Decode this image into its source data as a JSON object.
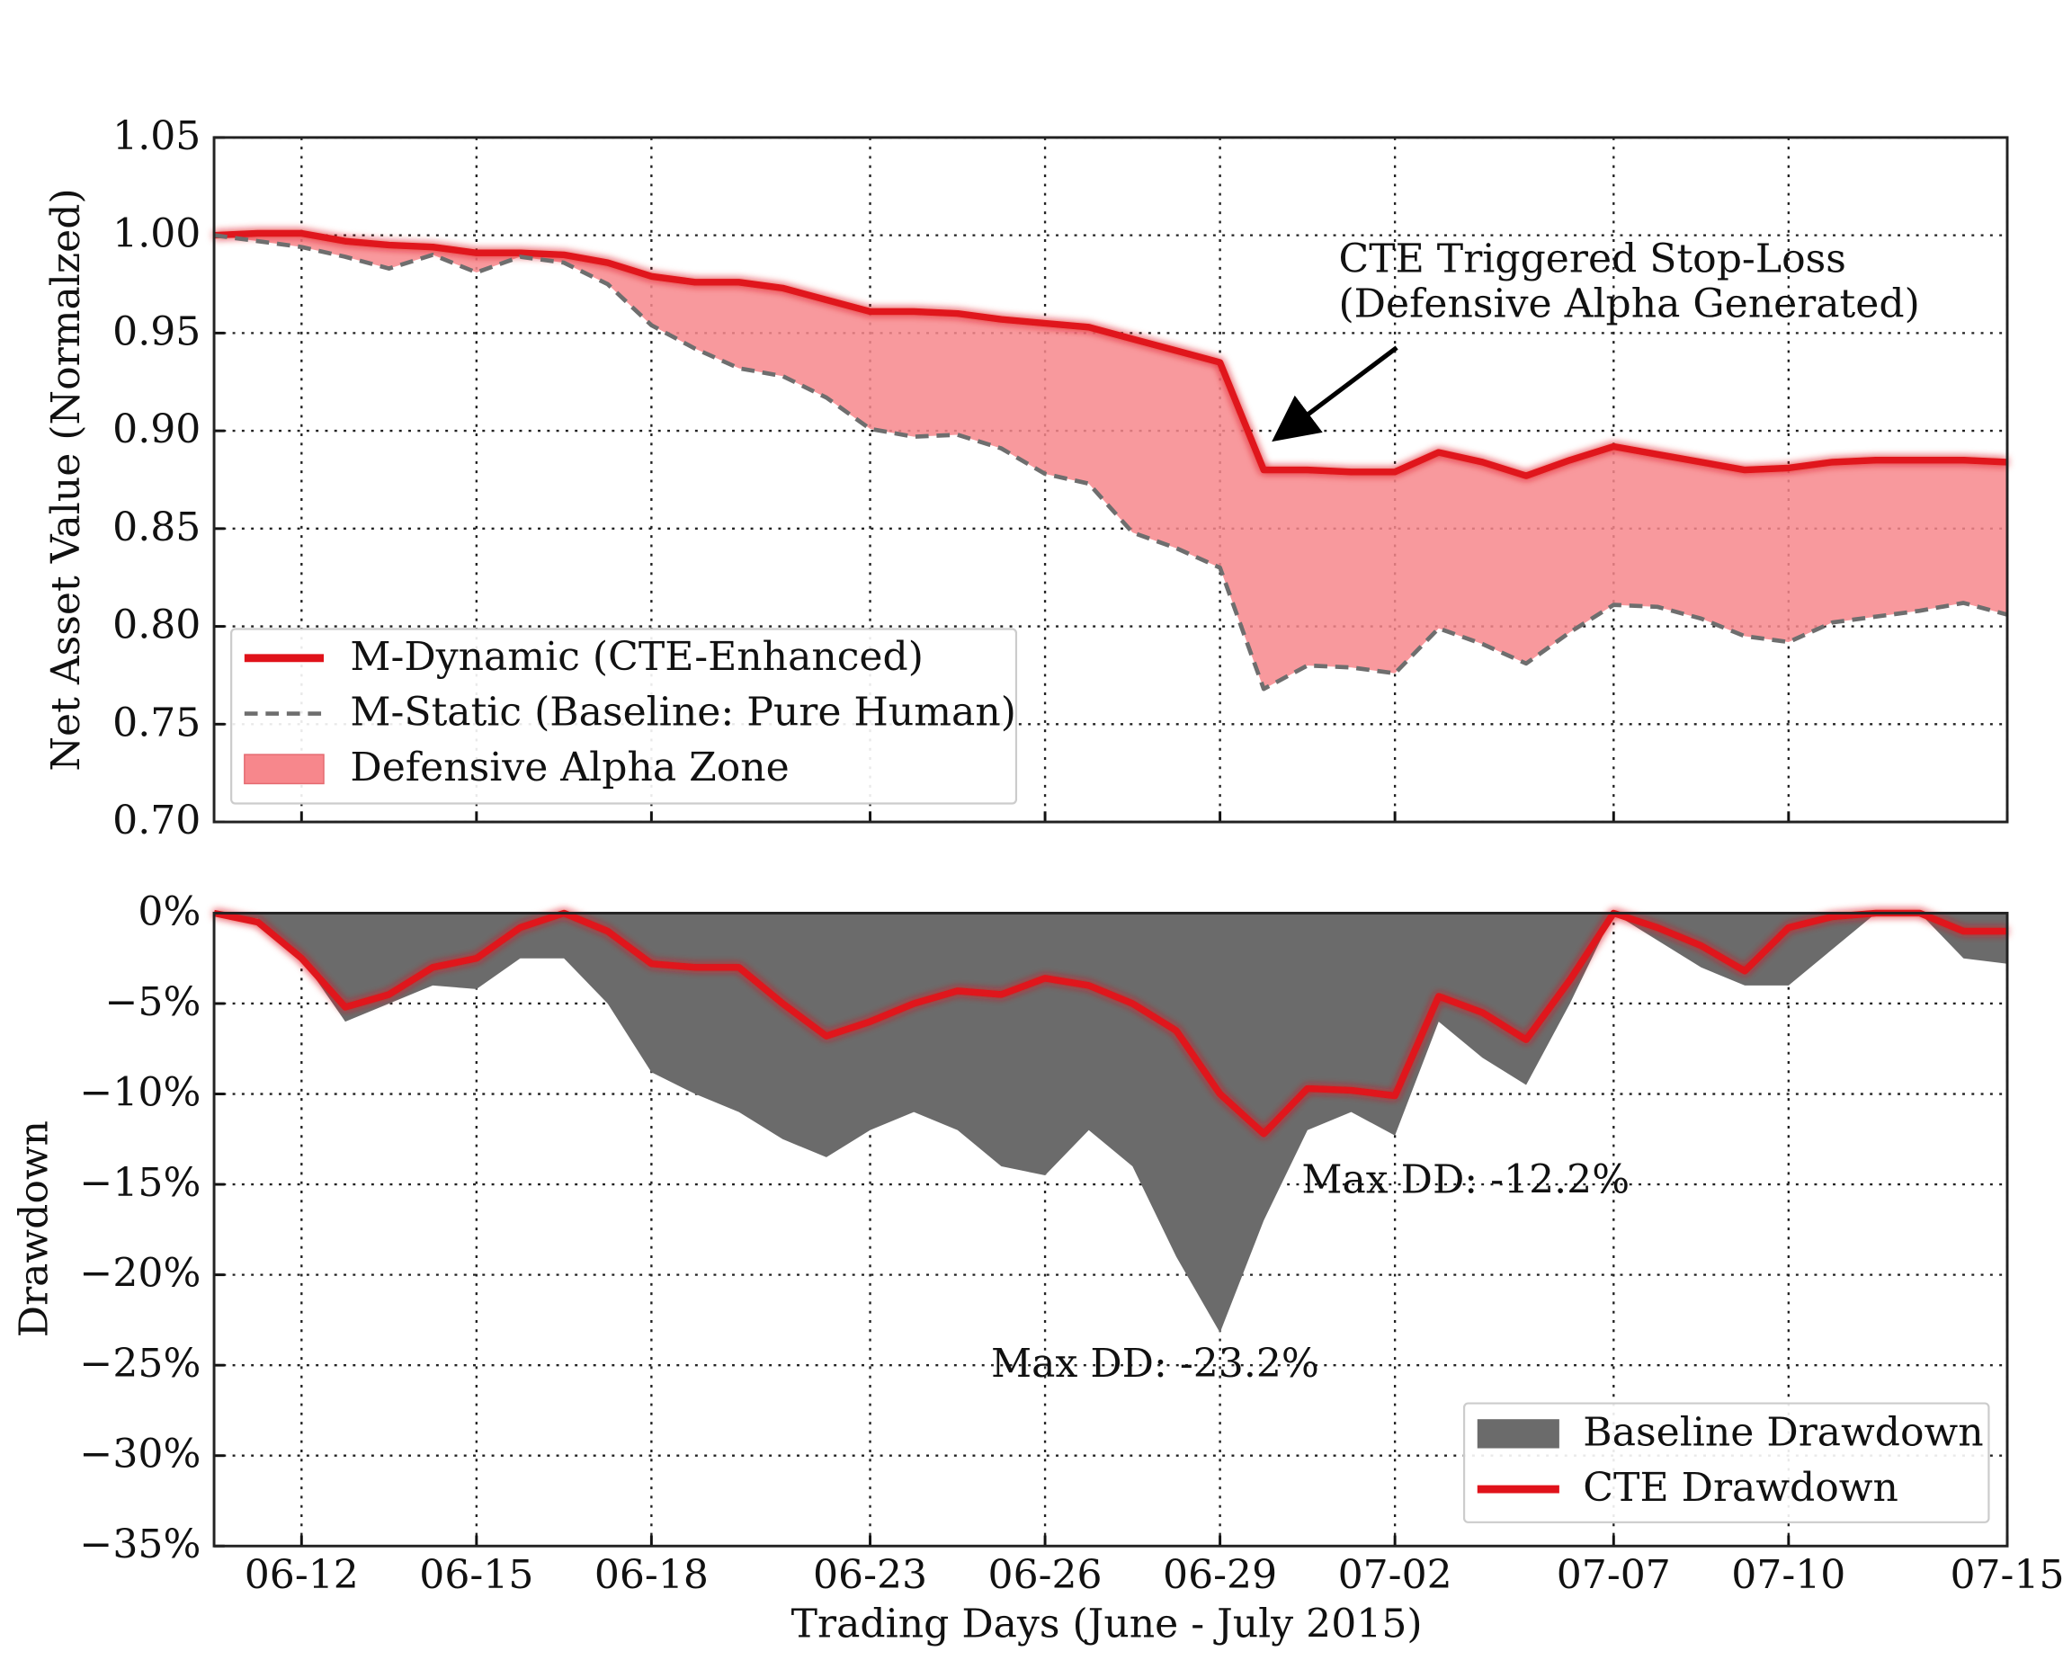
{
  "chart_data": [
    {
      "type": "line",
      "ylabel": "Net Asset Value (Normalzed)",
      "x": [
        0,
        1,
        2,
        3,
        4,
        5,
        6,
        7,
        8,
        9,
        10,
        11,
        12,
        13,
        14,
        15,
        16,
        17,
        18,
        19,
        20,
        21,
        22,
        23,
        24,
        25,
        26,
        27,
        28,
        29,
        30,
        31,
        32,
        33,
        34,
        35,
        36,
        37,
        38,
        39,
        40,
        41
      ],
      "xlim": [
        0,
        41
      ],
      "xticks": [
        2,
        6,
        10,
        15,
        19,
        23,
        27,
        32,
        36,
        41
      ],
      "ylim": [
        0.7,
        1.05
      ],
      "yticks": [
        {
          "value": 0.7,
          "label": "0.70"
        },
        0.75,
        {
          "value": 0.8,
          "label": "0.80"
        },
        0.85,
        {
          "value": 0.9,
          "label": "0.90"
        },
        0.95,
        {
          "value": 1.0,
          "label": "1.00"
        },
        1.05
      ],
      "grid": true,
      "legend": "lower left",
      "series": [
        {
          "name": "M-Dynamic (CTE-Enhanced)",
          "color": "#e0121a",
          "style": "solid",
          "values": [
            1.0,
            1.001,
            1.001,
            0.997,
            0.995,
            0.994,
            0.991,
            0.991,
            0.99,
            0.986,
            0.979,
            0.976,
            0.976,
            0.973,
            0.967,
            0.961,
            0.961,
            0.96,
            0.957,
            0.955,
            0.953,
            0.947,
            0.941,
            0.935,
            0.88,
            0.88,
            0.879,
            0.879,
            0.889,
            0.884,
            0.877,
            0.885,
            0.892,
            0.888,
            0.884,
            0.88,
            0.881,
            0.884,
            0.885,
            0.885,
            0.885,
            0.884
          ]
        },
        {
          "name": "M-Static (Baseline: Pure Human)",
          "color": "#6e6e6e",
          "style": "dashed",
          "values": [
            1.0,
            0.997,
            0.994,
            0.989,
            0.983,
            0.99,
            0.981,
            0.989,
            0.986,
            0.975,
            0.954,
            0.942,
            0.932,
            0.928,
            0.917,
            0.901,
            0.897,
            0.898,
            0.891,
            0.878,
            0.873,
            0.848,
            0.84,
            0.83,
            0.768,
            0.78,
            0.779,
            0.776,
            0.799,
            0.791,
            0.781,
            0.797,
            0.811,
            0.81,
            0.804,
            0.795,
            0.792,
            0.802,
            0.805,
            0.808,
            0.812,
            0.806
          ]
        }
      ],
      "fill_between": {
        "name": "Defensive Alpha Zone",
        "color": "#f7878c"
      },
      "annotation": {
        "lines": [
          "CTE Triggered Stop-Loss",
          "(Defensive Alpha Generated)"
        ]
      }
    },
    {
      "type": "area",
      "xlabel": "Trading Days (June - July 2015)",
      "ylabel": "Drawdown",
      "x": [
        0,
        1,
        2,
        3,
        4,
        5,
        6,
        7,
        8,
        9,
        10,
        11,
        12,
        13,
        14,
        15,
        16,
        17,
        18,
        19,
        20,
        21,
        22,
        23,
        24,
        25,
        26,
        27,
        28,
        29,
        30,
        31,
        32,
        33,
        34,
        35,
        36,
        37,
        38,
        39,
        40,
        41
      ],
      "xlim": [
        0,
        41
      ],
      "xticks": [
        {
          "value": 2,
          "label": "06-12"
        },
        {
          "value": 6,
          "label": "06-15"
        },
        {
          "value": 10,
          "label": "06-18"
        },
        {
          "value": 15,
          "label": "06-23"
        },
        {
          "value": 19,
          "label": "06-26"
        },
        {
          "value": 23,
          "label": "06-29"
        },
        {
          "value": 27,
          "label": "07-02"
        },
        {
          "value": 32,
          "label": "07-07"
        },
        {
          "value": 36,
          "label": "07-10"
        },
        {
          "value": 41,
          "label": "07-15"
        }
      ],
      "ylim": [
        -35,
        0
      ],
      "yticks": [
        {
          "value": 0,
          "label": "0%"
        },
        {
          "value": -5,
          "label": "−5%"
        },
        {
          "value": -10,
          "label": "−10%"
        },
        {
          "value": -15,
          "label": "−15%"
        },
        {
          "value": -20,
          "label": "−20%"
        },
        {
          "value": -25,
          "label": "−25%"
        },
        {
          "value": -30,
          "label": "−30%"
        },
        {
          "value": -35,
          "label": "−35%"
        }
      ],
      "grid": true,
      "legend": "lower right",
      "series": [
        {
          "name": "Baseline Drawdown",
          "color": "#6b6b6b",
          "style": "area",
          "values": [
            0,
            -0.3,
            -2.5,
            -6.0,
            -5.0,
            -4.0,
            -4.2,
            -2.5,
            -2.5,
            -5.0,
            -8.8,
            -10.0,
            -11.0,
            -12.5,
            -13.5,
            -12.0,
            -11.0,
            -12.0,
            -14.0,
            -14.5,
            -12.0,
            -14.0,
            -19.0,
            -23.2,
            -17.0,
            -12.0,
            -11.0,
            -12.3,
            -6.0,
            -8.0,
            -9.5,
            -5.0,
            0,
            -1.5,
            -3.0,
            -4.0,
            -4.0,
            -2.0,
            0,
            0,
            -2.5,
            -2.8
          ]
        },
        {
          "name": "CTE Drawdown",
          "color": "#e0121a",
          "style": "line",
          "values": [
            0,
            -0.5,
            -2.5,
            -5.2,
            -4.5,
            -3.0,
            -2.5,
            -0.8,
            0,
            -1.0,
            -2.8,
            -3.0,
            -3.0,
            -5.0,
            -6.8,
            -6.0,
            -5.0,
            -4.3,
            -4.5,
            -3.6,
            -4.0,
            -5.0,
            -6.5,
            -10.0,
            -12.2,
            -9.7,
            -9.8,
            -10.1,
            -4.6,
            -5.5,
            -7.0,
            -3.7,
            0,
            -0.8,
            -1.8,
            -3.2,
            -0.8,
            -0.2,
            0,
            0,
            -1.0,
            -1.0
          ]
        }
      ],
      "annotations": [
        {
          "text": "Max DD: -12.2%",
          "color": "#b3141b"
        },
        {
          "text": "Max DD: -23.2%",
          "color": "#858585"
        }
      ]
    }
  ]
}
